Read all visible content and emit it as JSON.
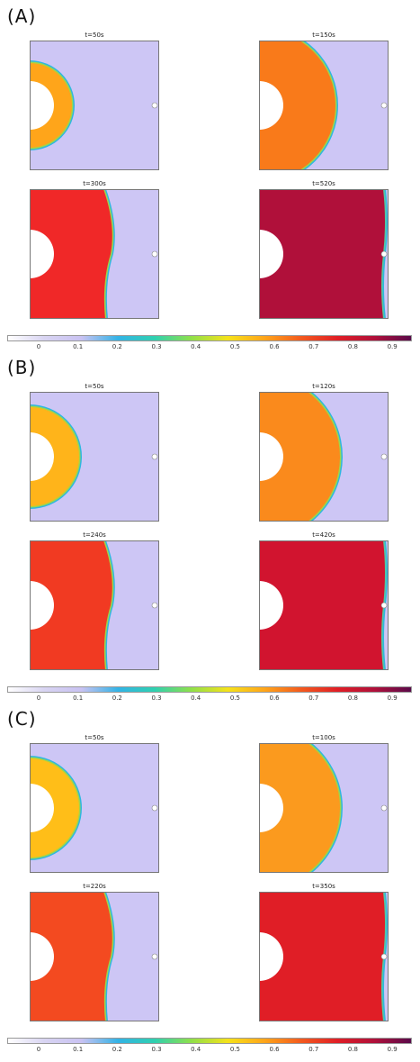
{
  "sections": [
    {
      "label": "(A)",
      "panels": [
        {
          "title": "t=50s",
          "front_radius": 47,
          "fill": "#ffa51a",
          "edge": "#9fd64a"
        },
        {
          "title": "t=150s",
          "front_radius": 85,
          "fill": "#f97a1a",
          "edge": "#9fd64a"
        },
        {
          "title": "t=300s",
          "front_radius": 125,
          "fill": "#f02828",
          "edge": "#9fd64a"
        },
        {
          "title": "t=520s",
          "front_radius": 500,
          "fill": "#b0103a",
          "edge": "#56c9a0"
        }
      ]
    },
    {
      "label": "(B)",
      "panels": [
        {
          "title": "t=50s",
          "front_radius": 55,
          "fill": "#ffb41a",
          "edge": "#9fd64a"
        },
        {
          "title": "t=120s",
          "front_radius": 90,
          "fill": "#fa8a1c",
          "edge": "#9fd64a"
        },
        {
          "title": "t=240s",
          "front_radius": 125,
          "fill": "#f13a22",
          "edge": "#9fd64a"
        },
        {
          "title": "t=420s",
          "front_radius": 500,
          "fill": "#d1142f",
          "edge": "#56c9a0"
        }
      ]
    },
    {
      "label": "(C)",
      "panels": [
        {
          "title": "t=50s",
          "front_radius": 55,
          "fill": "#ffbe18",
          "edge": "#9fd64a"
        },
        {
          "title": "t=100s",
          "front_radius": 90,
          "fill": "#fb9a1e",
          "edge": "#9fd64a"
        },
        {
          "title": "t=220s",
          "front_radius": 130,
          "fill": "#f34a20",
          "edge": "#9fd64a"
        },
        {
          "title": "t=350s",
          "front_radius": 500,
          "fill": "#e01e26",
          "edge": "#56c9a0"
        }
      ]
    }
  ],
  "colorbar": {
    "ticks": [
      "0",
      "0.1",
      "0.2",
      "0.3",
      "0.4",
      "0.5",
      "0.6",
      "0.7",
      "0.8",
      "0.9"
    ],
    "range": [
      -0.08,
      0.95
    ],
    "colors": [
      "#ffffff",
      "#d8d4f2",
      "#c9c2f2",
      "#33b3e6",
      "#2fd0b0",
      "#8fe04a",
      "#f5e21a",
      "#ffa51a",
      "#f35a1e",
      "#e01e26",
      "#b0103a",
      "#5a0a4a"
    ]
  },
  "background_color": "#cdc6f5",
  "hole_color": "#ffffff"
}
